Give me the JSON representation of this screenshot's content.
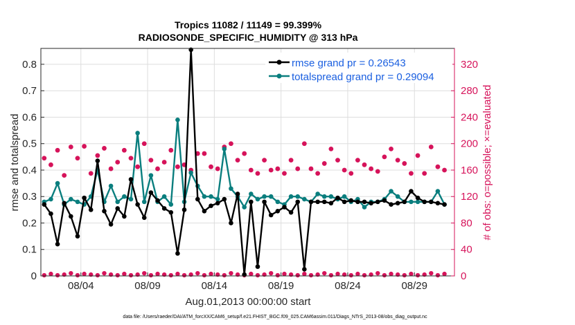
{
  "chart_data": {
    "type": "line",
    "title_line1": "Tropics 11082 / 11149 = 99.399%",
    "title_line2": "RADIOSONDE_SPECIFIC_HUMIDITY @ 313 hPa",
    "xlabel": "Aug.01,2013 00:00:00 start",
    "ylabel_left": "rmse and totalspread",
    "ylabel_right": "# of obs: o=possible; ×=evaluated",
    "footer": "data file: /Users/raeder/DAI/ATM_forcXX/CAM6_setup/f.e21.FHIST_BGC.f09_025.CAM6assim.011/Diags_NTrS_2013-08/obs_diag_output.nc",
    "x_range": [
      1,
      32
    ],
    "x_ticks": [
      4,
      9,
      14,
      19,
      24,
      29
    ],
    "x_tick_labels": [
      "08/04",
      "08/09",
      "08/14",
      "08/19",
      "08/24",
      "08/29"
    ],
    "y_left_range": [
      0,
      0.86
    ],
    "y_left_ticks": [
      "0",
      "0.1",
      "0.2",
      "0.3",
      "0.4",
      "0.5",
      "0.6",
      "0.7",
      "0.8"
    ],
    "y_right_range": [
      0,
      344
    ],
    "y_right_ticks": [
      "0",
      "40",
      "80",
      "120",
      "160",
      "200",
      "240",
      "280",
      "320"
    ],
    "colors": {
      "rmse": "#000000",
      "spread": "#0a7e7e",
      "obs": "#d6135a",
      "legend_text": "#1a5fe0",
      "grid": "#dddddd"
    },
    "legend": {
      "rmse": "rmse grand pr = 0.26543",
      "spread": "totalspread grand pr = 0.29094"
    },
    "rmse": {
      "x": [
        1.25,
        1.75,
        2.25,
        2.75,
        3.25,
        3.75,
        4.25,
        4.75,
        5.25,
        5.75,
        6.25,
        6.75,
        7.25,
        7.75,
        8.25,
        8.75,
        9.25,
        9.75,
        10.25,
        10.75,
        11.25,
        11.75,
        12.25,
        12.75,
        13.25,
        13.75,
        14.25,
        14.75,
        15.25,
        15.75,
        16.25,
        16.75,
        17.25,
        17.75,
        18.25,
        18.75,
        19.25,
        19.75,
        20.25,
        20.75,
        21.25,
        21.75,
        22.25,
        22.75,
        23.25,
        23.75,
        24.25,
        24.75,
        25.25,
        25.75,
        26.25,
        26.75,
        27.25,
        27.75,
        28.25,
        28.75,
        29.25,
        29.75,
        30.25,
        30.75,
        31.25
      ],
      "y": [
        0.27,
        0.235,
        0.12,
        0.275,
        0.225,
        0.15,
        0.295,
        0.25,
        0.435,
        0.245,
        0.195,
        0.255,
        0.225,
        0.365,
        0.27,
        0.22,
        0.315,
        0.285,
        0.255,
        0.24,
        0.085,
        0.25,
        0.855,
        0.29,
        0.245,
        0.265,
        0.275,
        0.29,
        0.2,
        0.31,
        0.005,
        0.28,
        0.035,
        0.28,
        0.23,
        0.245,
        0.26,
        0.24,
        0.28,
        0.025,
        0.28,
        0.28,
        0.28,
        0.275,
        0.295,
        0.28,
        0.285,
        0.28,
        0.28,
        0.275,
        0.28,
        0.285,
        0.27,
        0.275,
        0.28,
        0.32,
        0.295,
        0.28,
        0.28,
        0.275,
        0.27
      ]
    },
    "spread": {
      "x": [
        1.25,
        1.75,
        2.25,
        2.75,
        3.25,
        3.75,
        4.25,
        4.75,
        5.25,
        5.75,
        6.25,
        6.75,
        7.25,
        7.75,
        8.25,
        8.75,
        9.25,
        9.75,
        10.25,
        10.75,
        11.25,
        11.75,
        12.25,
        12.75,
        13.25,
        13.75,
        14.25,
        14.75,
        15.25,
        15.75,
        16.25,
        16.75,
        17.25,
        17.75,
        18.25,
        18.75,
        19.25,
        19.75,
        20.25,
        20.75,
        21.25,
        21.75,
        22.25,
        22.75,
        23.25,
        23.75,
        24.25,
        24.75,
        25.25,
        25.75,
        26.25,
        26.75,
        27.25,
        27.75,
        28.25,
        28.75,
        29.25,
        29.75,
        30.25,
        30.75,
        31.25
      ],
      "y": [
        0.28,
        0.29,
        0.35,
        0.27,
        0.29,
        0.28,
        0.27,
        0.3,
        0.4,
        0.28,
        0.34,
        0.28,
        0.3,
        0.29,
        0.54,
        0.28,
        0.38,
        0.28,
        0.3,
        0.27,
        0.59,
        0.28,
        0.39,
        0.34,
        0.3,
        0.3,
        0.29,
        0.48,
        0.33,
        0.3,
        0.26,
        0.31,
        0.29,
        0.3,
        0.3,
        0.28,
        0.27,
        0.3,
        0.3,
        0.29,
        0.28,
        0.31,
        0.3,
        0.3,
        0.29,
        0.3,
        0.28,
        0.29,
        0.26,
        0.28,
        0.28,
        0.29,
        0.32,
        0.3,
        0.28,
        0.28,
        0.28,
        0.28,
        0.28,
        0.32,
        0.27
      ]
    },
    "obs_possible": {
      "x": [
        1.25,
        1.75,
        2.25,
        2.75,
        3.25,
        3.75,
        4.25,
        4.75,
        5.25,
        5.75,
        6.25,
        6.75,
        7.25,
        7.75,
        8.25,
        8.75,
        9.25,
        9.75,
        10.25,
        10.75,
        11.25,
        11.75,
        12.25,
        12.75,
        13.25,
        13.75,
        14.25,
        14.75,
        15.25,
        15.75,
        16.25,
        16.75,
        17.25,
        17.75,
        18.25,
        18.75,
        19.25,
        19.75,
        20.25,
        20.75,
        21.25,
        21.75,
        22.25,
        22.75,
        23.25,
        23.75,
        24.25,
        24.75,
        25.25,
        25.75,
        26.25,
        26.75,
        27.25,
        27.75,
        28.25,
        28.75,
        29.25,
        29.75,
        30.25,
        30.75,
        31.25
      ],
      "y": [
        178,
        168,
        190,
        152,
        195,
        178,
        196,
        155,
        182,
        193,
        162,
        172,
        190,
        178,
        165,
        200,
        175,
        162,
        172,
        190,
        165,
        168,
        160,
        185,
        185,
        165,
        162,
        195,
        200,
        175,
        185,
        160,
        155,
        175,
        160,
        162,
        155,
        175,
        162,
        200,
        162,
        155,
        170,
        192,
        175,
        160,
        155,
        175,
        168,
        162,
        158,
        180,
        192,
        175,
        170,
        155,
        182,
        155,
        195,
        165,
        160
      ]
    },
    "obs_evaluated": {
      "x": [
        1.25,
        1.75,
        2.25,
        2.75,
        3.25,
        3.75,
        4.25,
        4.75,
        5.25,
        5.75,
        6.25,
        6.75,
        7.25,
        7.75,
        8.25,
        8.75,
        9.25,
        9.75,
        10.25,
        10.75,
        11.25,
        11.75,
        12.25,
        12.75,
        13.25,
        13.75,
        14.25,
        14.75,
        15.25,
        15.75,
        16.25,
        16.75,
        17.25,
        17.75,
        18.25,
        18.75,
        19.25,
        19.75,
        20.25,
        20.75,
        21.25,
        21.75,
        22.25,
        22.75,
        23.25,
        23.75,
        24.25,
        24.75,
        25.25,
        25.75,
        26.25,
        26.75,
        27.25,
        27.75,
        28.25,
        28.75,
        29.25,
        29.75,
        30.25,
        30.75,
        31.25
      ],
      "y": [
        1,
        3,
        1,
        2,
        4,
        1,
        3,
        2,
        1,
        4,
        2,
        1,
        3,
        1,
        2,
        4,
        1,
        3,
        2,
        1,
        3,
        1,
        2,
        4,
        1,
        3,
        2,
        1,
        4,
        2,
        1,
        3,
        1,
        2,
        4,
        1,
        3,
        2,
        1,
        3,
        1,
        2,
        4,
        1,
        3,
        2,
        1,
        3,
        1,
        2,
        4,
        1,
        3,
        2,
        1,
        3,
        1,
        2,
        4,
        1,
        3
      ]
    }
  }
}
